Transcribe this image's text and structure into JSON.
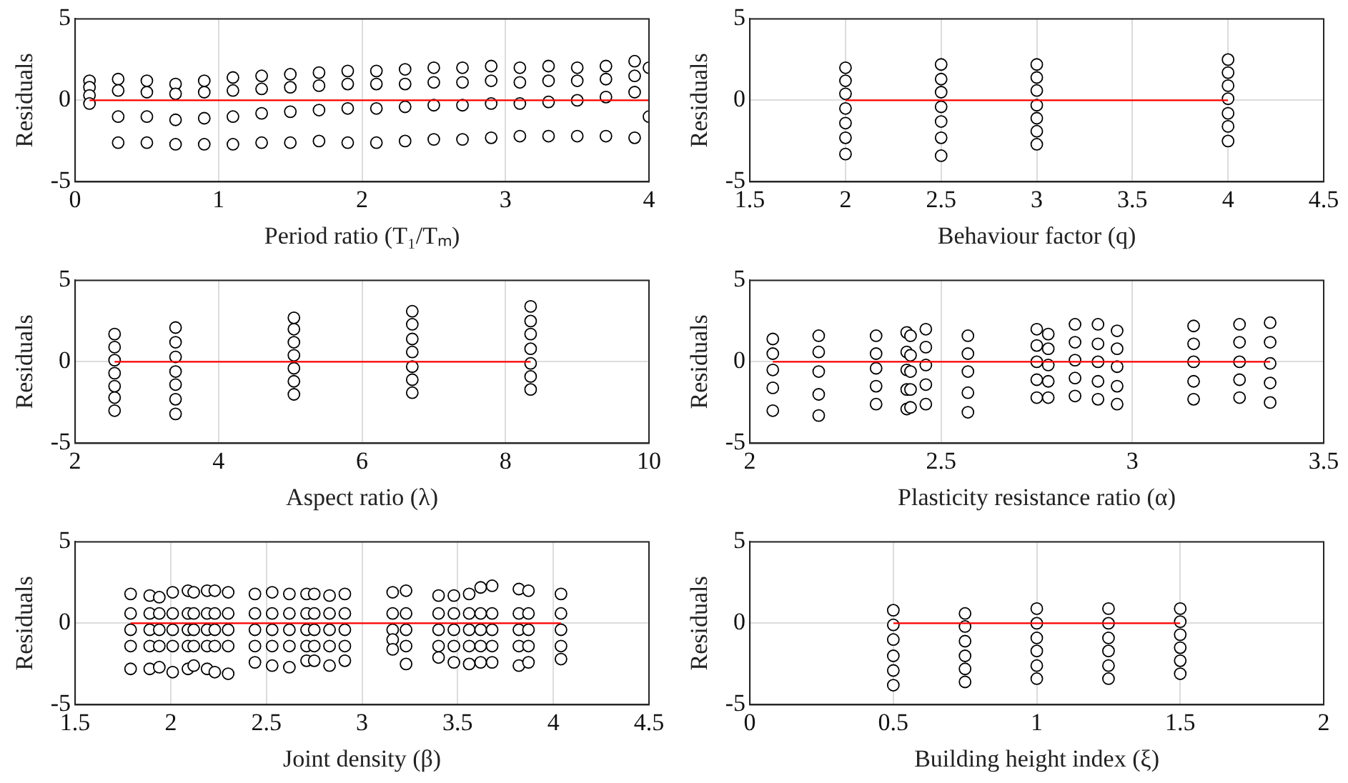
{
  "chart_data": [
    {
      "type": "scatter",
      "xlabel": "Period ratio (T₁/Tₘ)",
      "ylabel": "Residuals",
      "xlim": [
        0,
        4
      ],
      "xticks": [
        0,
        1,
        2,
        3,
        4
      ],
      "ylim": [
        -5,
        5
      ],
      "yticks": [
        -5,
        0,
        5
      ],
      "grid": true,
      "series": [
        {
          "marker": "circle",
          "color": "#000000",
          "x": [
            0.1,
            0.3,
            0.5,
            0.7,
            0.9,
            1.1,
            1.3,
            1.5,
            1.7,
            1.9,
            2.1,
            2.3,
            2.5,
            2.7,
            2.9,
            3.1,
            3.3,
            3.5,
            3.7,
            3.9,
            0.1,
            0.3,
            0.5,
            0.7,
            0.9,
            1.1,
            1.3,
            1.5,
            1.7,
            1.9,
            2.1,
            2.3,
            2.5,
            2.7,
            2.9,
            3.1,
            3.3,
            3.5,
            3.7,
            3.9,
            0.1,
            0.3,
            0.5,
            0.7,
            0.9,
            1.1,
            1.3,
            1.5,
            1.7,
            1.9,
            2.1,
            2.3,
            2.5,
            2.7,
            2.9,
            3.1,
            3.3,
            3.5,
            3.7,
            3.9,
            0.1,
            0.3,
            0.5,
            0.7,
            0.9,
            1.1,
            1.3,
            1.5,
            1.7,
            1.9,
            2.1,
            2.3,
            2.5,
            2.7,
            2.9,
            3.1,
            3.3,
            3.5,
            3.7,
            3.9,
            4.0,
            4.0
          ],
          "values": [
            1.2,
            1.3,
            1.2,
            1.0,
            1.2,
            1.4,
            1.5,
            1.6,
            1.7,
            1.8,
            1.8,
            1.9,
            2.0,
            2.0,
            2.1,
            2.0,
            2.1,
            2.0,
            2.1,
            2.4,
            0.8,
            0.6,
            0.5,
            0.4,
            0.5,
            0.6,
            0.7,
            0.8,
            0.9,
            1.0,
            1.0,
            1.0,
            1.1,
            1.1,
            1.2,
            1.1,
            1.2,
            1.2,
            1.3,
            1.5,
            0.3,
            -1.0,
            -1.0,
            -1.2,
            -1.1,
            -1.0,
            -0.8,
            -0.7,
            -0.6,
            -0.5,
            -0.5,
            -0.4,
            -0.3,
            -0.3,
            -0.2,
            -0.2,
            -0.1,
            0.0,
            0.2,
            0.5,
            -0.2,
            -2.6,
            -2.6,
            -2.7,
            -2.7,
            -2.7,
            -2.6,
            -2.6,
            -2.5,
            -2.6,
            -2.6,
            -2.5,
            -2.4,
            -2.4,
            -2.3,
            -2.2,
            -2.2,
            -2.2,
            -2.2,
            -2.3,
            2.0,
            -1.0
          ]
        },
        {
          "type": "line",
          "marker": "none",
          "color": "#ff0000",
          "x": [
            0.1,
            4.0
          ],
          "values": [
            0,
            0
          ]
        }
      ]
    },
    {
      "type": "scatter",
      "xlabel": "Behaviour factor (q)",
      "ylabel": "Residuals",
      "xlim": [
        1.5,
        4.5
      ],
      "xticks": [
        1.5,
        2,
        2.5,
        3,
        3.5,
        4,
        4.5
      ],
      "ylim": [
        -5,
        5
      ],
      "yticks": [
        -5,
        0,
        5
      ],
      "grid": true,
      "series": [
        {
          "marker": "circle",
          "color": "#000000",
          "x": [
            2,
            2,
            2,
            2,
            2,
            2,
            2,
            2.5,
            2.5,
            2.5,
            2.5,
            2.5,
            2.5,
            2.5,
            3,
            3,
            3,
            3,
            3,
            3,
            3,
            4,
            4,
            4,
            4,
            4,
            4,
            4
          ],
          "values": [
            2.0,
            1.2,
            0.4,
            -0.5,
            -1.4,
            -2.3,
            -3.3,
            2.2,
            1.3,
            0.5,
            -0.4,
            -1.3,
            -2.3,
            -3.4,
            2.2,
            1.4,
            0.6,
            -0.3,
            -1.1,
            -1.9,
            -2.7,
            2.5,
            1.7,
            0.9,
            0.1,
            -0.8,
            -1.6,
            -2.5
          ]
        },
        {
          "type": "line",
          "marker": "none",
          "color": "#ff0000",
          "x": [
            2,
            4
          ],
          "values": [
            0,
            0
          ]
        }
      ]
    },
    {
      "type": "scatter",
      "xlabel": "Aspect ratio (λ)",
      "ylabel": "Residuals",
      "xlim": [
        2,
        10
      ],
      "xticks": [
        2,
        4,
        6,
        8,
        10
      ],
      "ylim": [
        -5,
        5
      ],
      "yticks": [
        -5,
        0,
        5
      ],
      "grid": true,
      "series": [
        {
          "marker": "circle",
          "color": "#000000",
          "x": [
            2.55,
            2.55,
            2.55,
            2.55,
            2.55,
            2.55,
            2.55,
            3.4,
            3.4,
            3.4,
            3.4,
            3.4,
            3.4,
            3.4,
            5.05,
            5.05,
            5.05,
            5.05,
            5.05,
            5.05,
            5.05,
            6.7,
            6.7,
            6.7,
            6.7,
            6.7,
            6.7,
            6.7,
            8.35,
            8.35,
            8.35,
            8.35,
            8.35,
            8.35,
            8.35
          ],
          "values": [
            1.7,
            0.9,
            0.1,
            -0.7,
            -1.5,
            -2.2,
            -3.0,
            2.1,
            1.2,
            0.3,
            -0.6,
            -1.4,
            -2.3,
            -3.2,
            2.7,
            2.0,
            1.2,
            0.4,
            -0.4,
            -1.2,
            -2.0,
            3.1,
            2.3,
            1.4,
            0.6,
            -0.3,
            -1.1,
            -1.9,
            3.4,
            2.5,
            1.7,
            0.8,
            -0.1,
            -0.9,
            -1.7
          ]
        },
        {
          "type": "line",
          "marker": "none",
          "color": "#ff0000",
          "x": [
            2.55,
            8.35
          ],
          "values": [
            0,
            0
          ]
        }
      ]
    },
    {
      "type": "scatter",
      "xlabel": "Plasticity resistance ratio (α)",
      "ylabel": "Residuals",
      "xlim": [
        2,
        3.5
      ],
      "xticks": [
        2,
        2.5,
        3,
        3.5
      ],
      "ylim": [
        -5,
        5
      ],
      "yticks": [
        -5,
        0,
        5
      ],
      "grid": true,
      "series": [
        {
          "marker": "circle",
          "color": "#000000",
          "x": [
            2.06,
            2.06,
            2.06,
            2.06,
            2.06,
            2.18,
            2.18,
            2.18,
            2.18,
            2.18,
            2.33,
            2.33,
            2.33,
            2.33,
            2.33,
            2.41,
            2.41,
            2.41,
            2.41,
            2.41,
            2.42,
            2.42,
            2.42,
            2.42,
            2.42,
            2.46,
            2.46,
            2.46,
            2.46,
            2.46,
            2.57,
            2.57,
            2.57,
            2.57,
            2.57,
            2.75,
            2.75,
            2.75,
            2.75,
            2.75,
            2.78,
            2.78,
            2.78,
            2.78,
            2.78,
            2.85,
            2.85,
            2.85,
            2.85,
            2.85,
            2.91,
            2.91,
            2.91,
            2.91,
            2.91,
            2.96,
            2.96,
            2.96,
            2.96,
            2.96,
            3.16,
            3.16,
            3.16,
            3.16,
            3.16,
            3.28,
            3.28,
            3.28,
            3.28,
            3.28,
            3.36,
            3.36,
            3.36,
            3.36,
            3.36
          ],
          "values": [
            1.4,
            0.5,
            -0.5,
            -1.6,
            -3.0,
            1.6,
            0.6,
            -0.6,
            -2.0,
            -3.3,
            1.6,
            0.5,
            -0.4,
            -1.5,
            -2.6,
            1.8,
            0.6,
            -0.5,
            -1.7,
            -2.9,
            1.6,
            0.4,
            -0.6,
            -1.7,
            -2.8,
            2.0,
            0.9,
            -0.2,
            -1.4,
            -2.6,
            1.6,
            0.5,
            -0.6,
            -1.9,
            -3.1,
            2.0,
            1.0,
            0.0,
            -1.1,
            -2.2,
            1.7,
            0.8,
            -0.2,
            -1.2,
            -2.2,
            2.3,
            1.2,
            0.1,
            -1.0,
            -2.1,
            2.3,
            1.1,
            0.0,
            -1.2,
            -2.3,
            1.9,
            0.8,
            -0.3,
            -1.5,
            -2.6,
            2.2,
            1.1,
            0.0,
            -1.2,
            -2.3,
            2.3,
            1.2,
            0.0,
            -1.1,
            -2.2,
            2.4,
            1.2,
            -0.1,
            -1.3,
            -2.5
          ]
        },
        {
          "type": "line",
          "marker": "none",
          "color": "#ff0000",
          "x": [
            2.06,
            3.36
          ],
          "values": [
            0,
            0
          ]
        }
      ]
    },
    {
      "type": "scatter",
      "xlabel": "Joint density (β)",
      "ylabel": "Residuals",
      "xlim": [
        1.5,
        4.5
      ],
      "xticks": [
        1.5,
        2,
        2.5,
        3,
        3.5,
        4,
        4.5
      ],
      "ylim": [
        -5,
        5
      ],
      "yticks": [
        -5,
        0,
        5
      ],
      "grid": true,
      "series": [
        {
          "marker": "circle",
          "color": "#000000",
          "x": [
            1.79,
            1.79,
            1.79,
            1.79,
            1.79,
            1.89,
            1.89,
            1.89,
            1.89,
            1.89,
            1.94,
            1.94,
            1.94,
            1.94,
            1.94,
            2.01,
            2.01,
            2.01,
            2.01,
            2.01,
            2.09,
            2.09,
            2.09,
            2.09,
            2.09,
            2.12,
            2.12,
            2.12,
            2.12,
            2.12,
            2.19,
            2.19,
            2.19,
            2.19,
            2.19,
            2.23,
            2.23,
            2.23,
            2.23,
            2.23,
            2.3,
            2.3,
            2.3,
            2.3,
            2.3,
            2.44,
            2.44,
            2.44,
            2.44,
            2.44,
            2.53,
            2.53,
            2.53,
            2.53,
            2.53,
            2.62,
            2.62,
            2.62,
            2.62,
            2.62,
            2.71,
            2.71,
            2.71,
            2.71,
            2.71,
            2.75,
            2.75,
            2.75,
            2.75,
            2.75,
            2.83,
            2.83,
            2.83,
            2.83,
            2.83,
            2.91,
            2.91,
            2.91,
            2.91,
            2.91,
            3.16,
            3.16,
            3.16,
            3.16,
            3.16,
            3.23,
            3.23,
            3.23,
            3.23,
            3.23,
            3.4,
            3.4,
            3.4,
            3.4,
            3.4,
            3.48,
            3.48,
            3.48,
            3.48,
            3.48,
            3.56,
            3.56,
            3.56,
            3.56,
            3.56,
            3.62,
            3.62,
            3.62,
            3.62,
            3.62,
            3.68,
            3.68,
            3.68,
            3.68,
            3.68,
            3.82,
            3.82,
            3.82,
            3.82,
            3.82,
            3.87,
            3.87,
            3.87,
            3.87,
            3.87,
            4.04,
            4.04,
            4.04,
            4.04,
            4.04
          ],
          "values": [
            1.8,
            0.6,
            -0.4,
            -1.4,
            -2.8,
            1.7,
            0.6,
            -0.4,
            -1.4,
            -2.8,
            1.6,
            0.6,
            -0.4,
            -1.4,
            -2.7,
            1.9,
            0.6,
            -0.4,
            -1.4,
            -3.0,
            2.0,
            0.6,
            -0.4,
            -1.4,
            -2.8,
            1.9,
            0.6,
            -0.4,
            -1.4,
            -2.6,
            2.0,
            0.6,
            -0.4,
            -1.4,
            -2.8,
            2.0,
            0.6,
            -0.4,
            -1.4,
            -3.0,
            1.9,
            0.6,
            -0.4,
            -1.4,
            -3.1,
            1.8,
            0.6,
            -0.4,
            -1.4,
            -2.4,
            1.9,
            0.6,
            -0.4,
            -1.4,
            -2.6,
            1.8,
            0.6,
            -0.4,
            -1.4,
            -2.7,
            1.8,
            0.6,
            -0.4,
            -1.4,
            -2.3,
            1.8,
            0.6,
            -0.4,
            -1.4,
            -2.3,
            1.7,
            0.6,
            -0.4,
            -1.4,
            -2.6,
            1.8,
            0.6,
            -0.4,
            -1.4,
            -2.3,
            1.9,
            0.6,
            -0.4,
            -1.0,
            -1.6,
            2.0,
            0.6,
            -0.4,
            -1.4,
            -2.5,
            1.7,
            0.6,
            -0.4,
            -1.4,
            -2.1,
            1.7,
            0.6,
            -0.4,
            -1.4,
            -2.4,
            1.8,
            0.6,
            -0.4,
            -1.4,
            -2.5,
            2.2,
            0.6,
            -0.4,
            -1.4,
            -2.4,
            2.3,
            0.6,
            -0.4,
            -1.4,
            -2.4,
            2.1,
            0.6,
            -0.4,
            -1.4,
            -2.6,
            2.0,
            0.6,
            -0.4,
            -1.4,
            -2.4,
            1.8,
            0.6,
            -0.4,
            -1.4,
            -2.2
          ]
        },
        {
          "type": "line",
          "marker": "none",
          "color": "#ff0000",
          "x": [
            1.79,
            4.04
          ],
          "values": [
            0,
            0
          ]
        }
      ]
    },
    {
      "type": "scatter",
      "xlabel": "Building height index (ξ)",
      "ylabel": "Residuals",
      "xlim": [
        0,
        2
      ],
      "xticks": [
        0,
        0.5,
        1,
        1.5,
        2
      ],
      "ylim": [
        -5,
        5
      ],
      "yticks": [
        -5,
        0,
        5
      ],
      "grid": true,
      "series": [
        {
          "marker": "circle",
          "color": "#000000",
          "x": [
            0.5,
            0.5,
            0.5,
            0.5,
            0.5,
            0.5,
            0.75,
            0.75,
            0.75,
            0.75,
            0.75,
            0.75,
            1,
            1,
            1,
            1,
            1,
            1,
            1.25,
            1.25,
            1.25,
            1.25,
            1.25,
            1.25,
            1.5,
            1.5,
            1.5,
            1.5,
            1.5,
            1.5
          ],
          "values": [
            0.8,
            -0.1,
            -1.0,
            -2.0,
            -2.9,
            -3.8,
            0.6,
            -0.2,
            -1.1,
            -2.0,
            -2.8,
            -3.6,
            0.9,
            0.0,
            -0.9,
            -1.7,
            -2.6,
            -3.4,
            0.9,
            0.0,
            -0.9,
            -1.7,
            -2.6,
            -3.4,
            0.9,
            0.1,
            -0.7,
            -1.5,
            -2.3,
            -3.1
          ]
        },
        {
          "type": "line",
          "marker": "none",
          "color": "#ff0000",
          "x": [
            0.5,
            1.5
          ],
          "values": [
            0,
            0
          ]
        }
      ]
    }
  ]
}
